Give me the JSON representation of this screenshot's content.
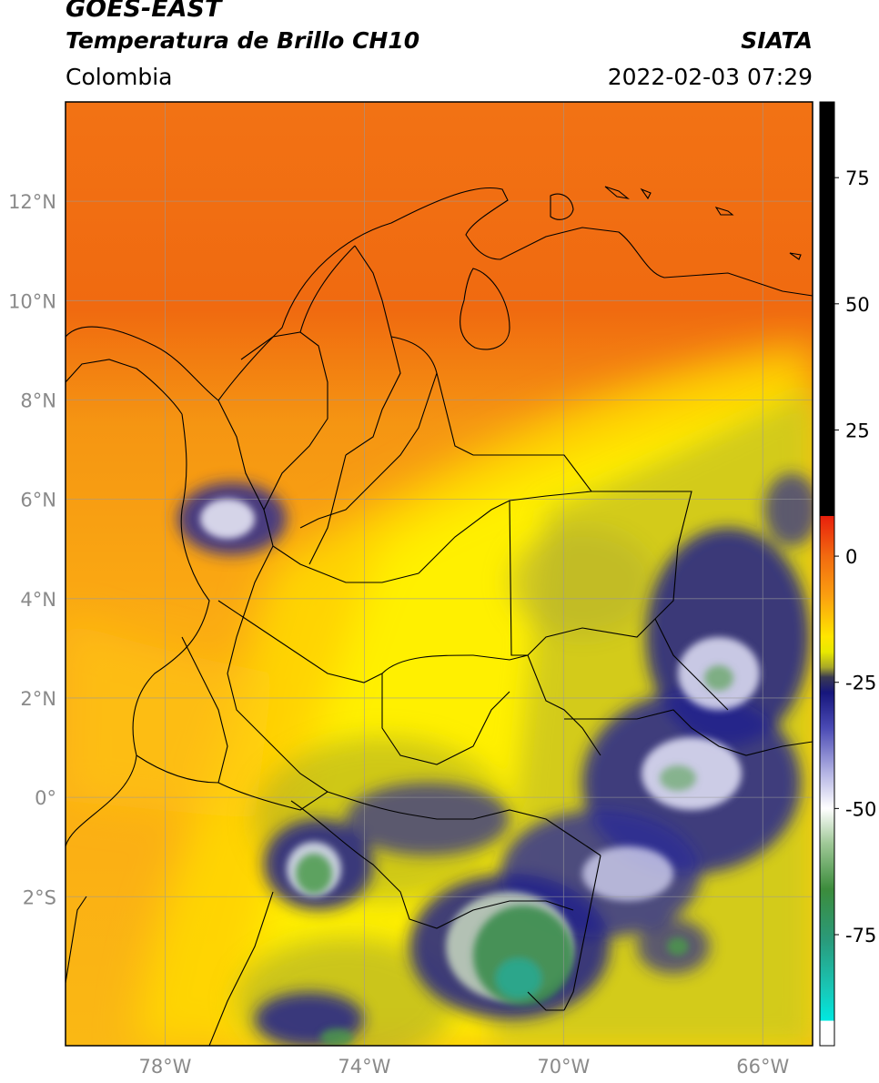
{
  "header": {
    "satellite": "GOES-EAST",
    "product": "Temperatura de Brillo CH10",
    "region": "Colombia",
    "organization": "SIATA",
    "timestamp": "2022-02-03 07:29"
  },
  "map": {
    "lon_range": [
      -80,
      -65
    ],
    "lat_range": [
      -5,
      14
    ],
    "lat_ticks": [
      {
        "value": 12,
        "label": "12°N"
      },
      {
        "value": 10,
        "label": "10°N"
      },
      {
        "value": 8,
        "label": "8°N"
      },
      {
        "value": 6,
        "label": "6°N"
      },
      {
        "value": 4,
        "label": "4°N"
      },
      {
        "value": 2,
        "label": "2°N"
      },
      {
        "value": 0,
        "label": "0°"
      },
      {
        "value": -2,
        "label": "2°S"
      }
    ],
    "lon_ticks": [
      {
        "value": -78,
        "label": "78°W"
      },
      {
        "value": -74,
        "label": "74°W"
      },
      {
        "value": -70,
        "label": "70°W"
      },
      {
        "value": -66,
        "label": "66°W"
      }
    ]
  },
  "colorbar": {
    "range": [
      -97,
      90
    ],
    "ticks": [
      {
        "value": 75,
        "label": "75"
      },
      {
        "value": 50,
        "label": "50"
      },
      {
        "value": 25,
        "label": "25"
      },
      {
        "value": 0,
        "label": "0"
      },
      {
        "value": -25,
        "label": "-25"
      },
      {
        "value": -50,
        "label": "-50"
      },
      {
        "value": -75,
        "label": "-75"
      }
    ],
    "stops": [
      {
        "value": 90,
        "color": "#000000"
      },
      {
        "value": 8,
        "color": "#000000"
      },
      {
        "value": 7.9,
        "color": "#e8200c"
      },
      {
        "value": 0,
        "color": "#f26a10"
      },
      {
        "value": -8,
        "color": "#fba010"
      },
      {
        "value": -16,
        "color": "#ffe600"
      },
      {
        "value": -19,
        "color": "#e8e800"
      },
      {
        "value": -22,
        "color": "#a8a828"
      },
      {
        "value": -24,
        "color": "#3a3a52"
      },
      {
        "value": -27,
        "color": "#16167c"
      },
      {
        "value": -34,
        "color": "#4a4ab4"
      },
      {
        "value": -43,
        "color": "#b4b4e4"
      },
      {
        "value": -50,
        "color": "#ffffff"
      },
      {
        "value": -57,
        "color": "#9ec896"
      },
      {
        "value": -66,
        "color": "#3c8c3c"
      },
      {
        "value": -76,
        "color": "#2a9a7a"
      },
      {
        "value": -86,
        "color": "#18c8b8"
      },
      {
        "value": -92,
        "color": "#00e8e0"
      },
      {
        "value": -92.1,
        "color": "#ffffff"
      },
      {
        "value": -97,
        "color": "#ffffff"
      }
    ]
  }
}
